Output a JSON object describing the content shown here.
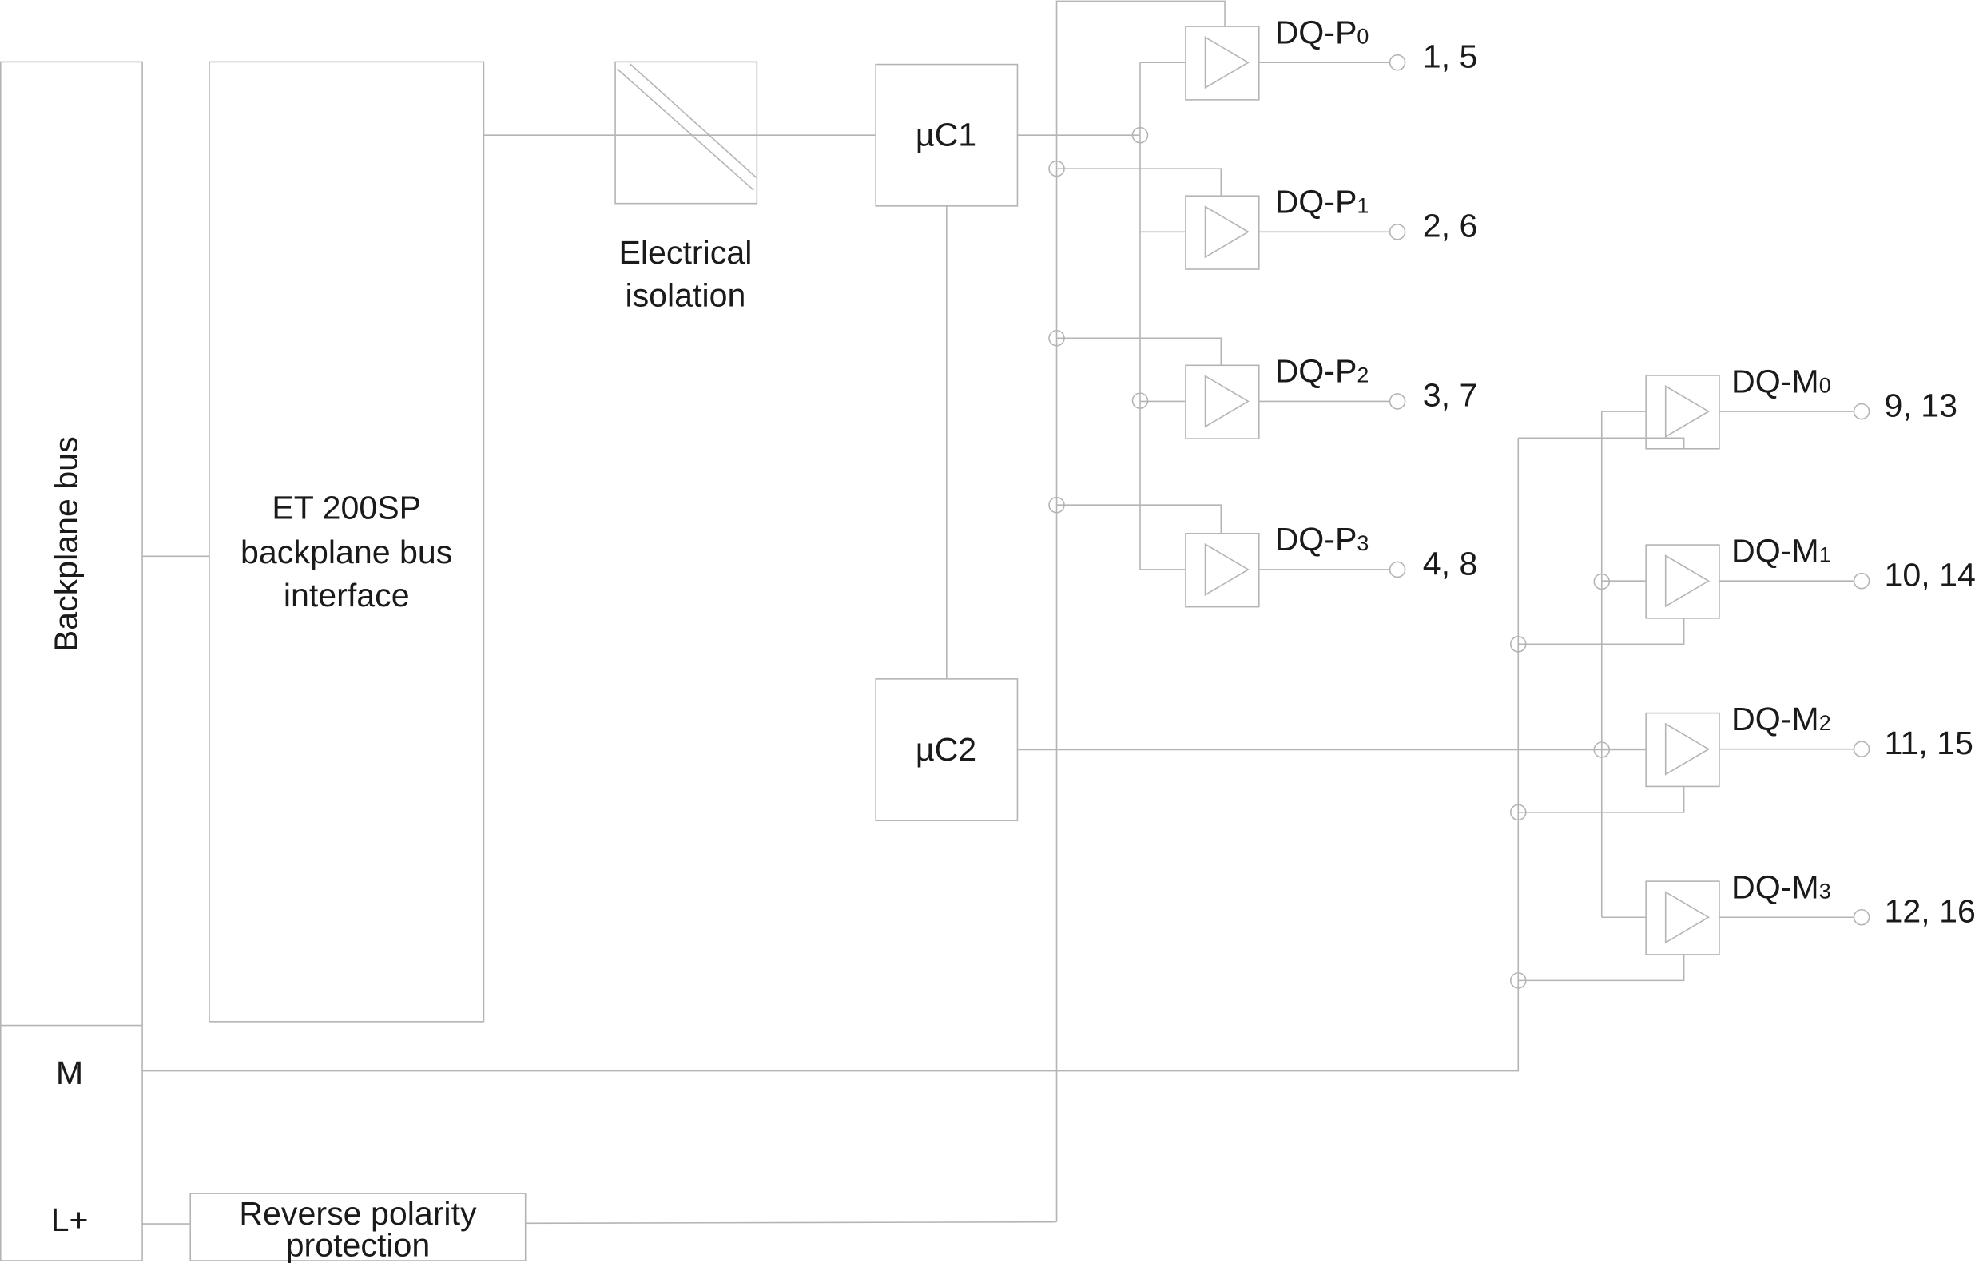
{
  "backplane": {
    "label": "Backplane bus",
    "m_label": "M",
    "lplus_label": "L+"
  },
  "interface": {
    "lines": [
      "ET 200SP",
      "backplane bus",
      "interface"
    ]
  },
  "isolation": {
    "lines": [
      "Electrical",
      "isolation"
    ]
  },
  "uc1": {
    "label": "µC1"
  },
  "uc2": {
    "label": "µC2"
  },
  "reverse_polarity": {
    "lines": [
      "Reverse polarity",
      "protection"
    ]
  },
  "p_channels": [
    {
      "base": "DQ-P",
      "sub": "0",
      "terminals": "1, 5"
    },
    {
      "base": "DQ-P",
      "sub": "1",
      "terminals": "2, 6"
    },
    {
      "base": "DQ-P",
      "sub": "2",
      "terminals": "3, 7"
    },
    {
      "base": "DQ-P",
      "sub": "3",
      "terminals": "4, 8"
    }
  ],
  "m_channels": [
    {
      "base": "DQ-M",
      "sub": "0",
      "terminals": "9, 13"
    },
    {
      "base": "DQ-M",
      "sub": "1",
      "terminals": "10, 14"
    },
    {
      "base": "DQ-M",
      "sub": "2",
      "terminals": "11, 15"
    },
    {
      "base": "DQ-M",
      "sub": "3",
      "terminals": "12, 16"
    }
  ],
  "colors": {
    "line": "#b4b4b4",
    "text": "#1a1a1a"
  }
}
